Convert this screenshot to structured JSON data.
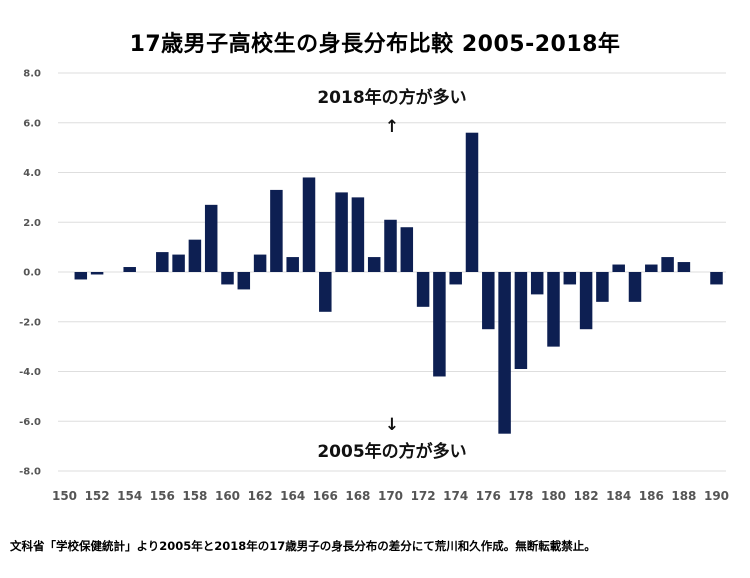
{
  "chart_data": {
    "type": "bar",
    "title": "17歳男子高校生の身長分布比較 2005-2018年",
    "xlabel": "",
    "ylabel": "",
    "ylim": [
      -8,
      8
    ],
    "yticks": [
      "8.0",
      "6.0",
      "4.0",
      "2.0",
      "0.0",
      "-2.0",
      "-4.0",
      "-6.0",
      "-8.0"
    ],
    "xtick_labels": [
      "150",
      "152",
      "154",
      "156",
      "158",
      "160",
      "162",
      "164",
      "166",
      "168",
      "170",
      "172",
      "174",
      "176",
      "178",
      "180",
      "182",
      "184",
      "186",
      "188",
      "190"
    ],
    "grid": true,
    "bar_color": "#0d1f52",
    "categories": [
      150,
      151,
      152,
      153,
      154,
      155,
      156,
      157,
      158,
      159,
      160,
      161,
      162,
      163,
      164,
      165,
      166,
      167,
      168,
      169,
      170,
      171,
      172,
      173,
      174,
      175,
      176,
      177,
      178,
      179,
      180,
      181,
      182,
      183,
      184,
      185,
      186,
      187,
      188,
      189,
      190
    ],
    "values": [
      0,
      -0.3,
      -0.1,
      0,
      0.2,
      0,
      0.8,
      0.7,
      1.3,
      2.7,
      -0.5,
      -0.7,
      0.7,
      3.3,
      0.6,
      3.8,
      -1.6,
      3.2,
      3.0,
      0.6,
      2.1,
      1.8,
      -1.4,
      -4.2,
      -0.5,
      5.6,
      -2.3,
      -6.5,
      -3.9,
      -0.9,
      -3.0,
      -0.5,
      -2.3,
      -1.2,
      0.3,
      -1.2,
      0.3,
      0.6,
      0.4,
      0,
      -0.5
    ],
    "annotations": {
      "top": "2018年の方が多い",
      "bottom": "2005年の方が多い",
      "up_arrow": "↑",
      "down_arrow": "↓"
    }
  },
  "footer": "文科省「学校保健統計」より2005年と2018年の17歳男子の身長分布の差分にて荒川和久作成。無断転載禁止。"
}
